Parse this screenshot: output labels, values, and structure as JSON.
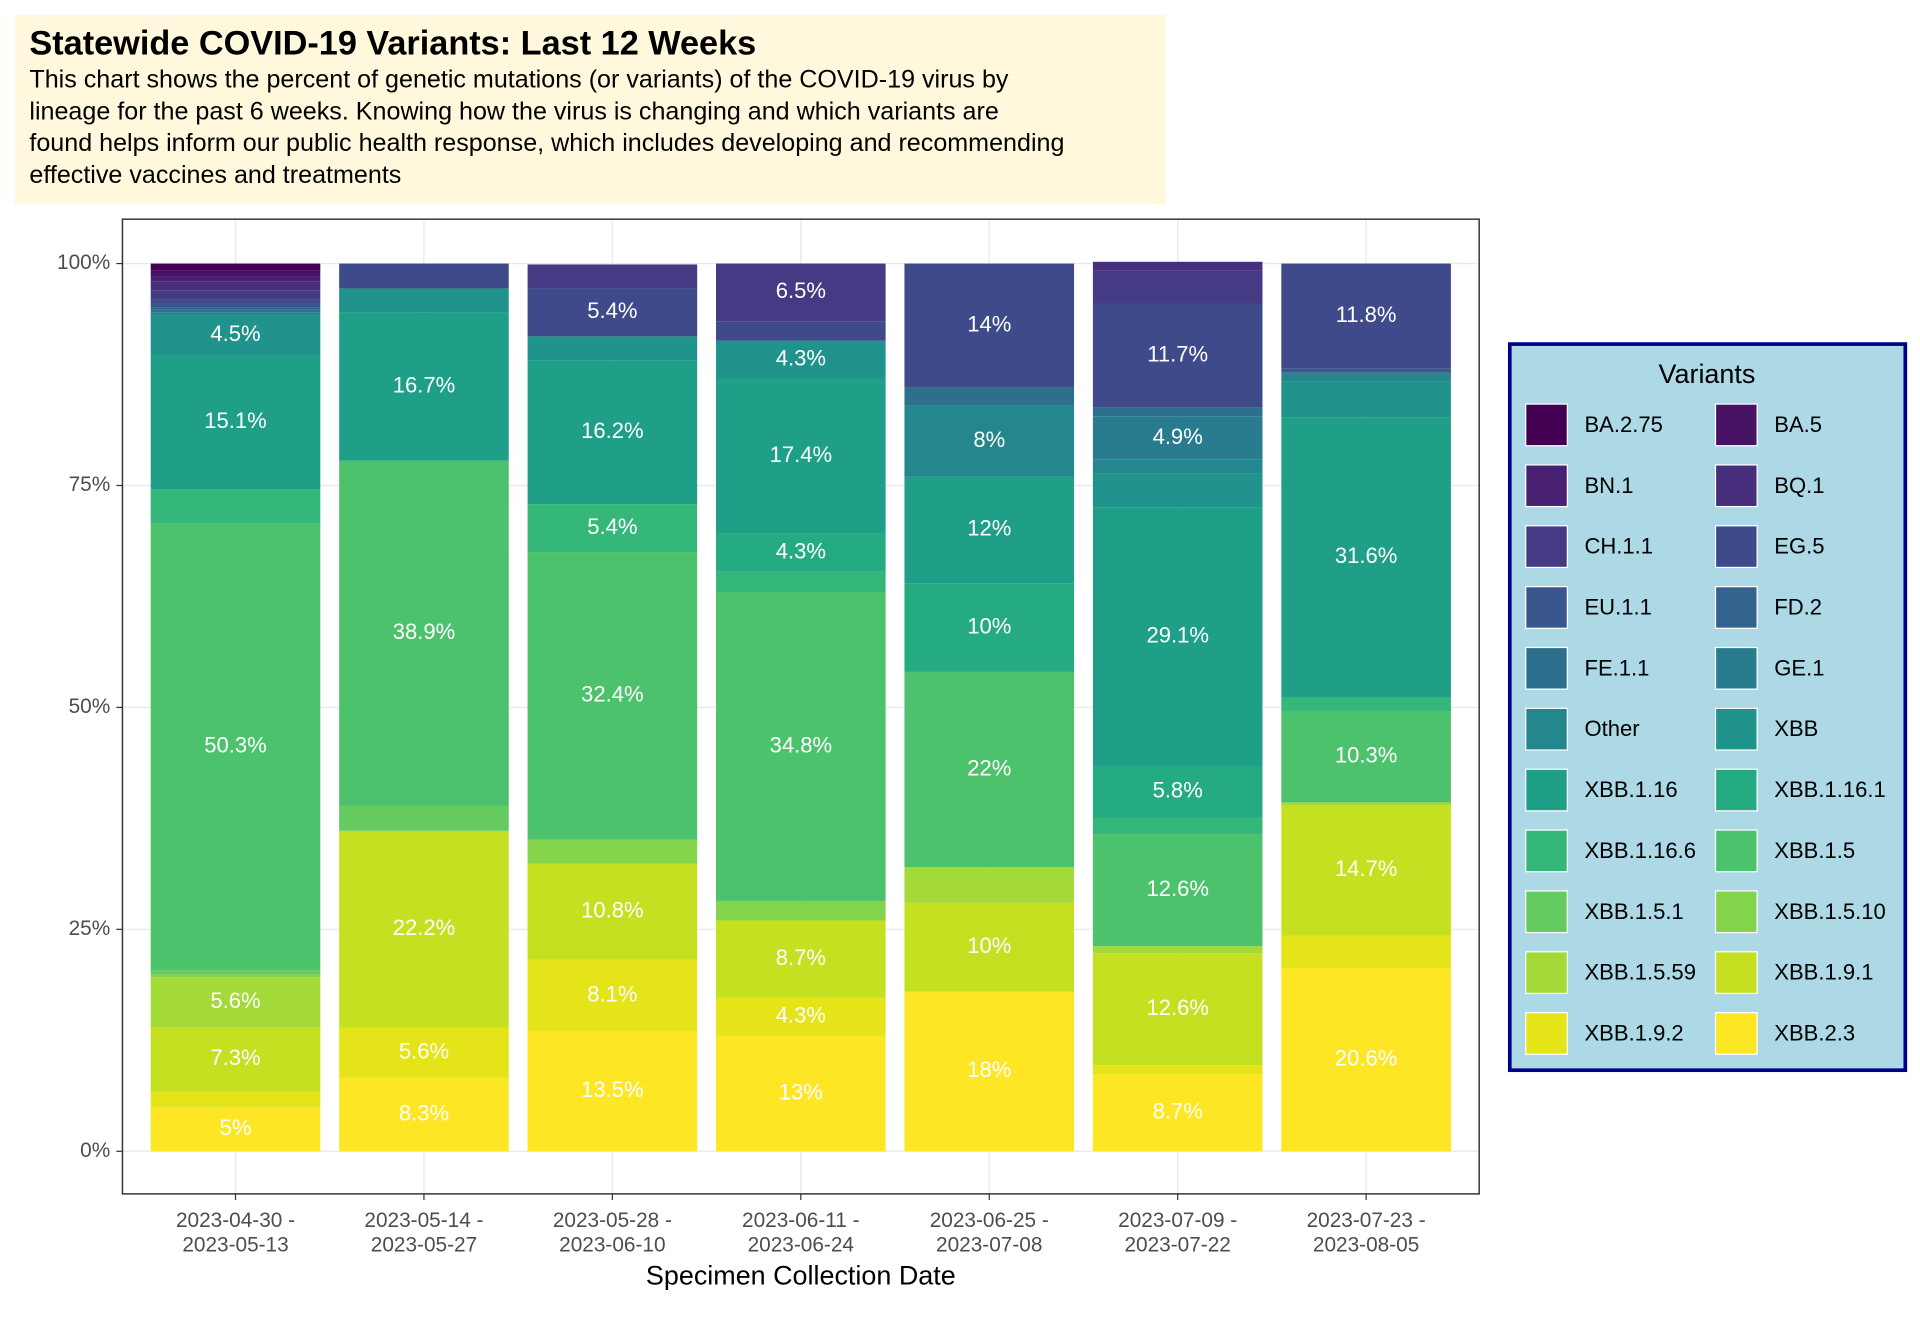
{
  "chart_data": {
    "type": "stacked_bar",
    "title": "Statewide COVID-19 Variants: Last 12 Weeks",
    "subtitle": [
      "This chart shows the percent of genetic mutations (or variants) of the COVID-19 virus by",
      "lineage for the past 6 weeks. Knowing how the virus is changing and which variants are",
      "found helps inform our public health response, which includes developing and recommending",
      "effective vaccines and treatments"
    ],
    "x_label": "Specimen Collection Date",
    "legend_title": "Variants",
    "legend_position": "right",
    "grid": true,
    "categories": [
      "2023-04-30 - 2023-05-13",
      "2023-05-14 - 2023-05-27",
      "2023-05-28 - 2023-06-10",
      "2023-06-11 - 2023-06-24",
      "2023-06-25 - 2023-07-08",
      "2023-07-09 - 2023-07-22",
      "2023-07-23 - 2023-08-05"
    ],
    "ylim": [
      -4.8,
      105
    ],
    "yticks": [
      {
        "value": 0,
        "label": "0%"
      },
      {
        "value": 25,
        "label": "25%"
      },
      {
        "value": 50,
        "label": "50%"
      },
      {
        "value": 75,
        "label": "75%"
      },
      {
        "value": 100,
        "label": "100%"
      }
    ],
    "series": [
      {
        "name": "BA.2.75",
        "color": "#440154",
        "values": [
          0.8,
          0,
          0,
          0,
          0,
          0,
          0
        ]
      },
      {
        "name": "BA.5",
        "color": "#471164",
        "values": [
          0.7,
          0,
          0,
          0,
          0,
          0,
          0
        ]
      },
      {
        "name": "BN.1",
        "color": "#482173",
        "values": [
          0.5,
          0,
          0,
          0,
          0,
          0,
          0
        ]
      },
      {
        "name": "BQ.1",
        "color": "#472F7D",
        "values": [
          1,
          0,
          0,
          0,
          0,
          1,
          0
        ]
      },
      {
        "name": "CH.1.1",
        "color": "#443B84",
        "values": [
          1,
          0,
          2.7,
          6.5,
          0,
          3.7,
          0
        ],
        "value_labels": [
          null,
          null,
          null,
          "6.5%",
          null,
          null,
          null
        ]
      },
      {
        "name": "EG.5",
        "color": "#3E4A89",
        "values": [
          0.5,
          2.8,
          5.4,
          2.2,
          14,
          11.7,
          11.8
        ],
        "value_labels": [
          null,
          null,
          "5.4%",
          null,
          "14%",
          "11.7%",
          "11.8%"
        ]
      },
      {
        "name": "EU.1.1",
        "color": "#39578C",
        "values": [
          0.4,
          0,
          0,
          0,
          0,
          0,
          0.5
        ]
      },
      {
        "name": "FD.2",
        "color": "#33638D",
        "values": [
          0.3,
          0,
          0,
          0,
          0,
          0,
          0
        ]
      },
      {
        "name": "FE.1.1",
        "color": "#2D708E",
        "values": [
          0.3,
          0,
          0,
          0,
          2,
          1,
          0
        ]
      },
      {
        "name": "GE.1",
        "color": "#287C8E",
        "values": [
          0,
          0,
          0,
          0,
          0,
          4.9,
          0
        ],
        "value_labels": [
          null,
          null,
          null,
          null,
          null,
          "4.9%",
          null
        ]
      },
      {
        "name": "Other",
        "color": "#24878E",
        "values": [
          0.3,
          0,
          0,
          0,
          8,
          1.5,
          1
        ],
        "value_labels": [
          null,
          null,
          null,
          null,
          "8%",
          null,
          null
        ]
      },
      {
        "name": "XBB",
        "color": "#20938C",
        "values": [
          4.5,
          2.7,
          2.7,
          4.3,
          0,
          3.9,
          4
        ],
        "value_labels": [
          "4.5%",
          null,
          null,
          "4.3%",
          null,
          null,
          null
        ]
      },
      {
        "name": "XBB.1.16",
        "color": "#1F9F88",
        "values": [
          15.1,
          16.7,
          16.2,
          17.4,
          12,
          29.1,
          31.6
        ],
        "value_labels": [
          "15.1%",
          "16.7%",
          "16.2%",
          "17.4%",
          "12%",
          "29.1%",
          "31.6%"
        ]
      },
      {
        "name": "XBB.1.16.1",
        "color": "#25AB82",
        "values": [
          0,
          0,
          0,
          4.3,
          10,
          5.8,
          0
        ],
        "value_labels": [
          null,
          null,
          null,
          "4.3%",
          "10%",
          "5.8%",
          null
        ]
      },
      {
        "name": "XBB.1.16.6",
        "color": "#35B779",
        "values": [
          3.9,
          0,
          5.4,
          2.3,
          0,
          1.9,
          1.5
        ],
        "value_labels": [
          null,
          null,
          "5.4%",
          null,
          null,
          null,
          null
        ]
      },
      {
        "name": "XBB.1.5",
        "color": "#4CC26C",
        "values": [
          50.3,
          38.9,
          32.4,
          34.8,
          22,
          12.6,
          10.3
        ],
        "value_labels": [
          "50.3%",
          "38.9%",
          "32.4%",
          "34.8%",
          "22%",
          "12.6%",
          "10.3%"
        ]
      },
      {
        "name": "XBB.1.5.1",
        "color": "#65CB5E",
        "values": [
          0.5,
          2.8,
          0,
          0,
          0,
          0,
          0
        ]
      },
      {
        "name": "XBB.1.5.10",
        "color": "#83D34B",
        "values": [
          0.3,
          0,
          2.7,
          2.2,
          0,
          0,
          0
        ]
      },
      {
        "name": "XBB.1.5.59",
        "color": "#A3DA37",
        "values": [
          5.6,
          0,
          0,
          0,
          4,
          0.8,
          0.3
        ],
        "value_labels": [
          "5.6%",
          null,
          null,
          null,
          null,
          null,
          null
        ]
      },
      {
        "name": "XBB.1.9.1",
        "color": "#C5E021",
        "values": [
          7.3,
          22.2,
          10.8,
          8.7,
          10,
          12.6,
          14.7
        ],
        "value_labels": [
          "7.3%",
          "22.2%",
          "10.8%",
          "8.7%",
          "10%",
          "12.6%",
          "14.7%"
        ]
      },
      {
        "name": "XBB.1.9.2",
        "color": "#E4E419",
        "values": [
          1.7,
          5.6,
          8.1,
          4.3,
          0,
          1,
          3.7
        ],
        "value_labels": [
          null,
          "5.6%",
          "8.1%",
          "4.3%",
          null,
          null,
          null
        ]
      },
      {
        "name": "XBB.2.3",
        "color": "#FDE725",
        "values": [
          5,
          8.3,
          13.5,
          13,
          18,
          8.7,
          20.6
        ],
        "value_labels": [
          "5%",
          "8.3%",
          "13.5%",
          "13%",
          "18%",
          "8.7%",
          "20.6%"
        ]
      }
    ]
  }
}
